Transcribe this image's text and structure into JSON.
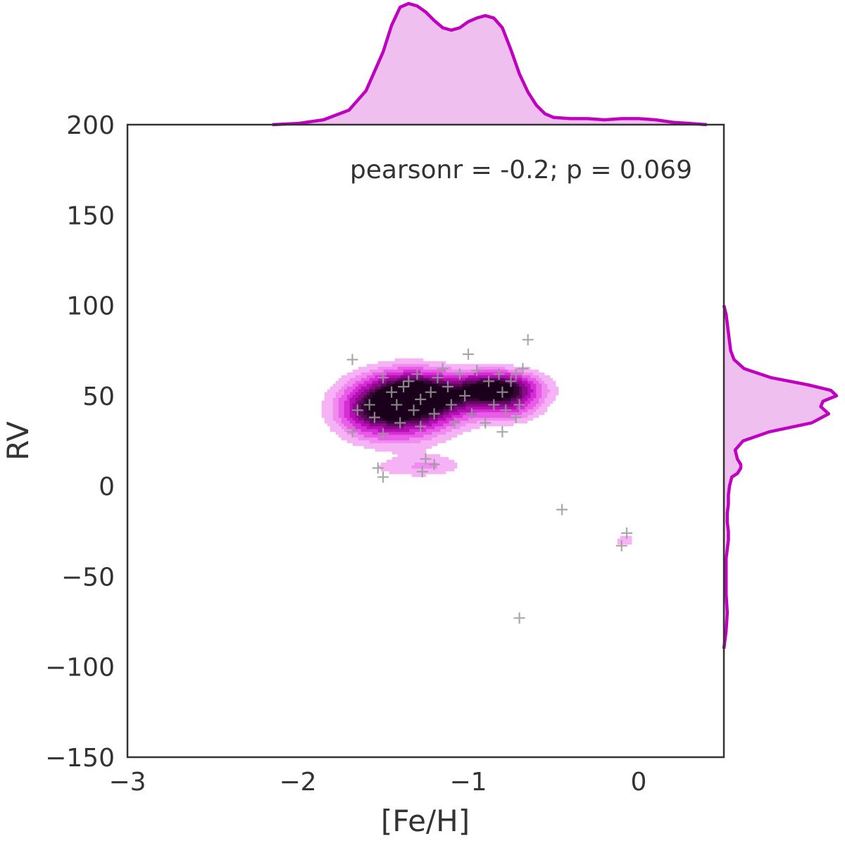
{
  "chart_data": {
    "type": "scatter",
    "xlabel": "[Fe/H]",
    "ylabel": "RV",
    "xlim": [
      -3,
      0.5
    ],
    "ylim": [
      -150,
      200
    ],
    "xticks": [
      -3,
      -2,
      -1,
      0
    ],
    "xtick_labels": [
      "−3",
      "−2",
      "−1",
      "0"
    ],
    "yticks": [
      200,
      150,
      100,
      50,
      0,
      -50,
      -100,
      -150
    ],
    "ytick_labels": [
      "200",
      "150",
      "100",
      "50",
      "0",
      "−50",
      "−100",
      "−150"
    ],
    "annotation": "pearsonr = -0.2; p = 0.069",
    "grid": false,
    "colors": {
      "marginal_line": "#bf00bf",
      "marginal_fill": "#efc0ef",
      "point": "#9a9a9a",
      "frame": "#333333",
      "kde_levels": [
        "#f5b3f5",
        "#f08cf0",
        "#e85ce8",
        "#d42fd4",
        "#b50fb5",
        "#8a0a8a",
        "#5c0a5c",
        "#360436",
        "#1a001a"
      ]
    },
    "points": [
      {
        "x": -1.68,
        "y": 70
      },
      {
        "x": -1.68,
        "y": 30
      },
      {
        "x": -1.65,
        "y": 42
      },
      {
        "x": -1.58,
        "y": 45
      },
      {
        "x": -1.55,
        "y": 38
      },
      {
        "x": -1.5,
        "y": 29
      },
      {
        "x": -1.53,
        "y": 10
      },
      {
        "x": -1.5,
        "y": 5
      },
      {
        "x": -1.5,
        "y": 60
      },
      {
        "x": -1.45,
        "y": 52
      },
      {
        "x": -1.42,
        "y": 45
      },
      {
        "x": -1.4,
        "y": 35
      },
      {
        "x": -1.38,
        "y": 55
      },
      {
        "x": -1.35,
        "y": 58
      },
      {
        "x": -1.32,
        "y": 42
      },
      {
        "x": -1.3,
        "y": 62
      },
      {
        "x": -1.28,
        "y": 48
      },
      {
        "x": -1.28,
        "y": 33
      },
      {
        "x": -1.27,
        "y": 8
      },
      {
        "x": -1.25,
        "y": 15
      },
      {
        "x": -1.22,
        "y": 52
      },
      {
        "x": -1.2,
        "y": 12
      },
      {
        "x": -1.2,
        "y": 40
      },
      {
        "x": -1.18,
        "y": 60
      },
      {
        "x": -1.15,
        "y": 65
      },
      {
        "x": -1.12,
        "y": 55
      },
      {
        "x": -1.1,
        "y": 45
      },
      {
        "x": -1.08,
        "y": 35
      },
      {
        "x": -1.05,
        "y": 62
      },
      {
        "x": -1.02,
        "y": 50
      },
      {
        "x": -1.0,
        "y": 73
      },
      {
        "x": -0.98,
        "y": 40
      },
      {
        "x": -0.95,
        "y": 64
      },
      {
        "x": -0.9,
        "y": 35
      },
      {
        "x": -0.88,
        "y": 58
      },
      {
        "x": -0.85,
        "y": 45
      },
      {
        "x": -0.82,
        "y": 62
      },
      {
        "x": -0.8,
        "y": 52
      },
      {
        "x": -0.8,
        "y": 30
      },
      {
        "x": -0.78,
        "y": 42
      },
      {
        "x": -0.75,
        "y": 58
      },
      {
        "x": -0.72,
        "y": 62
      },
      {
        "x": -0.72,
        "y": 38
      },
      {
        "x": -0.7,
        "y": 45
      },
      {
        "x": -0.68,
        "y": 65
      },
      {
        "x": -0.65,
        "y": 81
      },
      {
        "x": -0.45,
        "y": -13
      },
      {
        "x": -0.7,
        "y": -73
      },
      {
        "x": -0.07,
        "y": -26
      },
      {
        "x": -0.1,
        "y": -33
      }
    ],
    "x_marginal": {
      "x": [
        -2.15,
        -2.0,
        -1.85,
        -1.7,
        -1.6,
        -1.5,
        -1.45,
        -1.4,
        -1.35,
        -1.3,
        -1.25,
        -1.2,
        -1.15,
        -1.1,
        -1.05,
        -1.0,
        -0.95,
        -0.9,
        -0.85,
        -0.8,
        -0.75,
        -0.7,
        -0.65,
        -0.6,
        -0.55,
        -0.5,
        -0.4,
        -0.3,
        -0.2,
        -0.1,
        0.0,
        0.1,
        0.2,
        0.3,
        0.4
      ],
      "density": [
        0.0,
        0.01,
        0.04,
        0.12,
        0.28,
        0.6,
        0.82,
        0.97,
        1.0,
        0.98,
        0.93,
        0.86,
        0.8,
        0.78,
        0.8,
        0.85,
        0.88,
        0.9,
        0.88,
        0.8,
        0.62,
        0.42,
        0.27,
        0.16,
        0.09,
        0.06,
        0.05,
        0.05,
        0.04,
        0.05,
        0.05,
        0.04,
        0.02,
        0.01,
        0.0
      ]
    },
    "y_marginal": {
      "y": [
        100,
        95,
        90,
        85,
        80,
        75,
        70,
        65,
        60,
        56,
        53,
        50,
        47,
        44,
        40,
        35,
        30,
        25,
        20,
        15,
        12,
        10,
        7,
        5,
        0,
        -5,
        -10,
        -15,
        -20,
        -25,
        -30,
        -35,
        -40,
        -50,
        -60,
        -70,
        -80,
        -90
      ],
      "density": [
        0.0,
        0.02,
        0.03,
        0.04,
        0.05,
        0.06,
        0.09,
        0.18,
        0.42,
        0.75,
        0.95,
        1.0,
        0.88,
        0.86,
        0.93,
        0.78,
        0.4,
        0.17,
        0.1,
        0.12,
        0.15,
        0.15,
        0.12,
        0.07,
        0.05,
        0.04,
        0.04,
        0.03,
        0.03,
        0.04,
        0.04,
        0.03,
        0.02,
        0.02,
        0.02,
        0.03,
        0.02,
        0.0
      ]
    },
    "kde_blobs": [
      {
        "cx": -1.42,
        "cy": 43,
        "sx": 0.2,
        "sy": 11,
        "w": 1.0
      },
      {
        "cx": -1.32,
        "cy": 52,
        "sx": 0.16,
        "sy": 8,
        "w": 0.7
      },
      {
        "cx": -0.83,
        "cy": 54,
        "sx": 0.16,
        "sy": 6,
        "w": 1.05
      },
      {
        "cx": -1.08,
        "cy": 48,
        "sx": 0.2,
        "sy": 8,
        "w": 0.45
      },
      {
        "cx": -0.75,
        "cy": 44,
        "sx": 0.12,
        "sy": 6,
        "w": 0.3
      },
      {
        "cx": -1.6,
        "cy": 42,
        "sx": 0.1,
        "sy": 8,
        "w": 0.25
      },
      {
        "cx": -1.36,
        "cy": 10,
        "sx": 0.18,
        "sy": 4,
        "w": 0.13
      },
      {
        "cx": -1.2,
        "cy": 12,
        "sx": 0.12,
        "sy": 4,
        "w": 0.12
      },
      {
        "cx": -0.08,
        "cy": -30,
        "sx": 0.04,
        "sy": 2.5,
        "w": 0.18
      }
    ]
  }
}
